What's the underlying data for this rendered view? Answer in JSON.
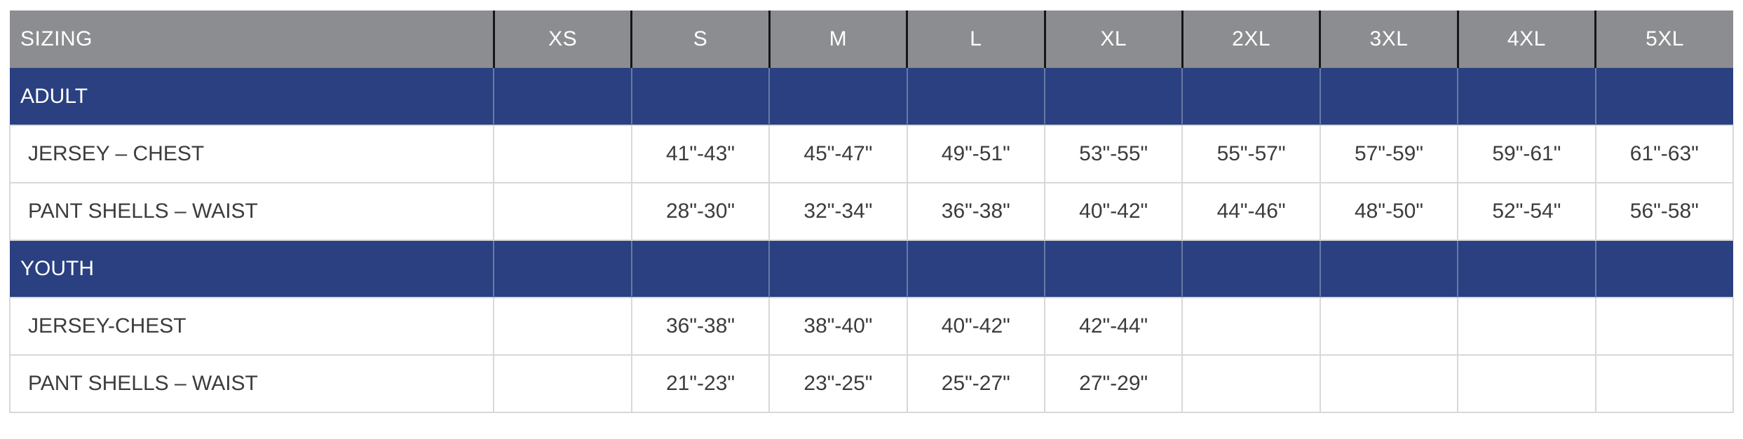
{
  "colors": {
    "header_bg": "#8b8d90",
    "header_text": "#ffffff",
    "section_bg": "#2a4080",
    "section_text": "#ffffff",
    "header_divider": "#161616",
    "grid_line": "#d8d8d8",
    "body_text": "#3c3c3c",
    "page_bg": "#ffffff"
  },
  "chart_data": {
    "type": "table",
    "title": "SIZING",
    "columns": [
      "SIZING",
      "XS",
      "S",
      "M",
      "L",
      "XL",
      "2XL",
      "3XL",
      "4XL",
      "5XL"
    ],
    "sections": [
      {
        "title": "ADULT",
        "rows": [
          {
            "label": "JERSEY – CHEST",
            "values": [
              "",
              "41\"-43\"",
              "45\"-47\"",
              "49\"-51\"",
              "53\"-55\"",
              "55\"-57\"",
              "57\"-59\"",
              "59\"-61\"",
              "61\"-63\""
            ]
          },
          {
            "label": "PANT SHELLS – WAIST",
            "values": [
              "",
              "28\"-30\"",
              "32\"-34\"",
              "36\"-38\"",
              "40\"-42\"",
              "44\"-46\"",
              "48\"-50\"",
              "52\"-54\"",
              "56\"-58\""
            ]
          }
        ]
      },
      {
        "title": "YOUTH",
        "rows": [
          {
            "label": "JERSEY-CHEST",
            "values": [
              "",
              "36\"-38\"",
              "38\"-40\"",
              "40\"-42\"",
              "42\"-44\"",
              "",
              "",
              "",
              ""
            ]
          },
          {
            "label": "PANT SHELLS – WAIST",
            "values": [
              "",
              "21\"-23\"",
              "23\"-25\"",
              "25\"-27\"",
              "27\"-29\"",
              "",
              "",
              "",
              ""
            ]
          }
        ]
      }
    ],
    "layout": {
      "first_column_width_pct": 28.09,
      "size_column_width_pct": 7.99,
      "grid": true,
      "legend": "none"
    }
  }
}
